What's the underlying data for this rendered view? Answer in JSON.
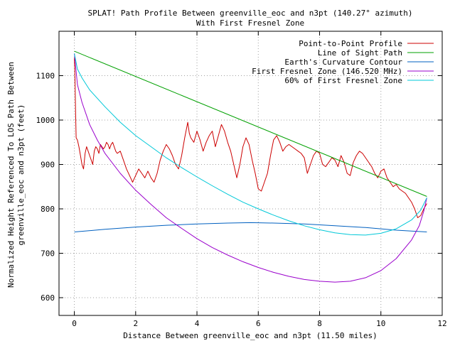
{
  "chart_data": {
    "type": "line",
    "title": "SPLAT! Path Profile Between greenville_eoc and n3pt (140.27° azimuth)",
    "subtitle": "With First Fresnel Zone",
    "xlabel": "Distance Between greenville_eoc and n3pt (11.50 miles)",
    "ylabel_line1": "Normalized Height Referenced To LOS Path Between",
    "ylabel_line2": "greenville_eoc and n3pt (feet)",
    "xlim": [
      -0.5,
      12
    ],
    "ylim": [
      560,
      1200
    ],
    "xticks": [
      0,
      2,
      4,
      6,
      8,
      10,
      12
    ],
    "yticks": [
      600,
      700,
      800,
      900,
      1000,
      1100
    ],
    "grid": true,
    "legend_position": "top-right",
    "series": [
      {
        "name": "Point-to-Point Profile",
        "color": "#cc0000",
        "points": [
          [
            0,
            1140
          ],
          [
            0.02,
            1100
          ],
          [
            0.04,
            1020
          ],
          [
            0.06,
            960
          ],
          [
            0.1,
            955
          ],
          [
            0.15,
            940
          ],
          [
            0.2,
            920
          ],
          [
            0.25,
            900
          ],
          [
            0.3,
            890
          ],
          [
            0.35,
            925
          ],
          [
            0.4,
            940
          ],
          [
            0.45,
            930
          ],
          [
            0.5,
            920
          ],
          [
            0.55,
            910
          ],
          [
            0.6,
            900
          ],
          [
            0.65,
            930
          ],
          [
            0.7,
            940
          ],
          [
            0.75,
            935
          ],
          [
            0.8,
            925
          ],
          [
            0.85,
            945
          ],
          [
            0.9,
            940
          ],
          [
            0.95,
            935
          ],
          [
            1.0,
            940
          ],
          [
            1.05,
            950
          ],
          [
            1.1,
            945
          ],
          [
            1.15,
            935
          ],
          [
            1.2,
            945
          ],
          [
            1.25,
            950
          ],
          [
            1.3,
            940
          ],
          [
            1.35,
            930
          ],
          [
            1.4,
            925
          ],
          [
            1.5,
            930
          ],
          [
            1.6,
            910
          ],
          [
            1.7,
            890
          ],
          [
            1.8,
            875
          ],
          [
            1.9,
            860
          ],
          [
            2.0,
            875
          ],
          [
            2.1,
            890
          ],
          [
            2.2,
            880
          ],
          [
            2.3,
            870
          ],
          [
            2.4,
            885
          ],
          [
            2.5,
            870
          ],
          [
            2.6,
            860
          ],
          [
            2.7,
            880
          ],
          [
            2.8,
            910
          ],
          [
            2.9,
            930
          ],
          [
            3.0,
            945
          ],
          [
            3.1,
            935
          ],
          [
            3.2,
            920
          ],
          [
            3.3,
            900
          ],
          [
            3.4,
            890
          ],
          [
            3.5,
            920
          ],
          [
            3.6,
            960
          ],
          [
            3.7,
            995
          ],
          [
            3.75,
            970
          ],
          [
            3.8,
            960
          ],
          [
            3.9,
            950
          ],
          [
            4.0,
            975
          ],
          [
            4.1,
            955
          ],
          [
            4.2,
            930
          ],
          [
            4.3,
            950
          ],
          [
            4.4,
            965
          ],
          [
            4.5,
            975
          ],
          [
            4.6,
            940
          ],
          [
            4.7,
            965
          ],
          [
            4.8,
            990
          ],
          [
            4.9,
            975
          ],
          [
            5.0,
            950
          ],
          [
            5.1,
            930
          ],
          [
            5.2,
            900
          ],
          [
            5.3,
            870
          ],
          [
            5.4,
            900
          ],
          [
            5.5,
            940
          ],
          [
            5.6,
            960
          ],
          [
            5.7,
            945
          ],
          [
            5.8,
            910
          ],
          [
            5.9,
            880
          ],
          [
            6.0,
            845
          ],
          [
            6.1,
            840
          ],
          [
            6.2,
            860
          ],
          [
            6.3,
            880
          ],
          [
            6.4,
            920
          ],
          [
            6.5,
            955
          ],
          [
            6.6,
            965
          ],
          [
            6.7,
            950
          ],
          [
            6.8,
            930
          ],
          [
            6.9,
            940
          ],
          [
            7.0,
            945
          ],
          [
            7.1,
            940
          ],
          [
            7.2,
            935
          ],
          [
            7.3,
            930
          ],
          [
            7.4,
            925
          ],
          [
            7.5,
            915
          ],
          [
            7.6,
            880
          ],
          [
            7.7,
            900
          ],
          [
            7.8,
            920
          ],
          [
            7.9,
            930
          ],
          [
            8.0,
            925
          ],
          [
            8.1,
            900
          ],
          [
            8.2,
            895
          ],
          [
            8.3,
            905
          ],
          [
            8.4,
            915
          ],
          [
            8.5,
            910
          ],
          [
            8.6,
            895
          ],
          [
            8.7,
            920
          ],
          [
            8.8,
            905
          ],
          [
            8.9,
            880
          ],
          [
            9.0,
            875
          ],
          [
            9.1,
            905
          ],
          [
            9.2,
            920
          ],
          [
            9.3,
            930
          ],
          [
            9.4,
            925
          ],
          [
            9.5,
            915
          ],
          [
            9.6,
            905
          ],
          [
            9.7,
            895
          ],
          [
            9.8,
            880
          ],
          [
            9.9,
            870
          ],
          [
            10.0,
            885
          ],
          [
            10.1,
            890
          ],
          [
            10.2,
            870
          ],
          [
            10.3,
            860
          ],
          [
            10.4,
            850
          ],
          [
            10.5,
            855
          ],
          [
            10.6,
            845
          ],
          [
            10.7,
            840
          ],
          [
            10.8,
            835
          ],
          [
            10.9,
            825
          ],
          [
            11.0,
            815
          ],
          [
            11.1,
            800
          ],
          [
            11.2,
            780
          ],
          [
            11.3,
            785
          ],
          [
            11.4,
            800
          ],
          [
            11.5,
            812
          ]
        ]
      },
      {
        "name": "Line of Sight Path",
        "color": "#00a000",
        "points": [
          [
            0,
            1155
          ],
          [
            11.5,
            828
          ]
        ]
      },
      {
        "name": "Earth's Curvature Contour",
        "color": "#0060c0",
        "points": [
          [
            0,
            748
          ],
          [
            1,
            754
          ],
          [
            2,
            759
          ],
          [
            3,
            763
          ],
          [
            4,
            766
          ],
          [
            5,
            768
          ],
          [
            5.75,
            769
          ],
          [
            6.5,
            768
          ],
          [
            7.5,
            766
          ],
          [
            8.5,
            762
          ],
          [
            9.5,
            758
          ],
          [
            10.5,
            752
          ],
          [
            11.5,
            748
          ]
        ]
      },
      {
        "name": "First Fresnel Zone (146.520 MHz)",
        "color": "#9a00cc",
        "points": [
          [
            0,
            1150
          ],
          [
            0.1,
            1080
          ],
          [
            0.25,
            1040
          ],
          [
            0.5,
            990
          ],
          [
            0.75,
            955
          ],
          [
            1,
            925
          ],
          [
            1.5,
            880
          ],
          [
            2,
            842
          ],
          [
            2.5,
            810
          ],
          [
            3,
            780
          ],
          [
            3.5,
            756
          ],
          [
            4,
            733
          ],
          [
            4.5,
            713
          ],
          [
            5,
            696
          ],
          [
            5.5,
            681
          ],
          [
            6,
            668
          ],
          [
            6.5,
            657
          ],
          [
            7,
            648
          ],
          [
            7.5,
            641
          ],
          [
            8,
            637
          ],
          [
            8.5,
            635
          ],
          [
            9,
            637
          ],
          [
            9.5,
            645
          ],
          [
            10,
            661
          ],
          [
            10.5,
            688
          ],
          [
            11,
            730
          ],
          [
            11.25,
            762
          ],
          [
            11.4,
            795
          ],
          [
            11.5,
            825
          ]
        ]
      },
      {
        "name": "60% of First Fresnel Zone",
        "color": "#00c8d8",
        "points": [
          [
            0,
            1150
          ],
          [
            0.1,
            1115
          ],
          [
            0.25,
            1095
          ],
          [
            0.5,
            1068
          ],
          [
            1,
            1030
          ],
          [
            1.5,
            995
          ],
          [
            2,
            965
          ],
          [
            2.5,
            940
          ],
          [
            3,
            915
          ],
          [
            3.5,
            893
          ],
          [
            4,
            872
          ],
          [
            4.5,
            852
          ],
          [
            5,
            833
          ],
          [
            5.5,
            815
          ],
          [
            6,
            800
          ],
          [
            6.5,
            786
          ],
          [
            7,
            773
          ],
          [
            7.5,
            762
          ],
          [
            8,
            753
          ],
          [
            8.5,
            746
          ],
          [
            9,
            742
          ],
          [
            9.5,
            741
          ],
          [
            10,
            745
          ],
          [
            10.5,
            755
          ],
          [
            11,
            775
          ],
          [
            11.3,
            797
          ],
          [
            11.5,
            825
          ]
        ]
      }
    ]
  }
}
